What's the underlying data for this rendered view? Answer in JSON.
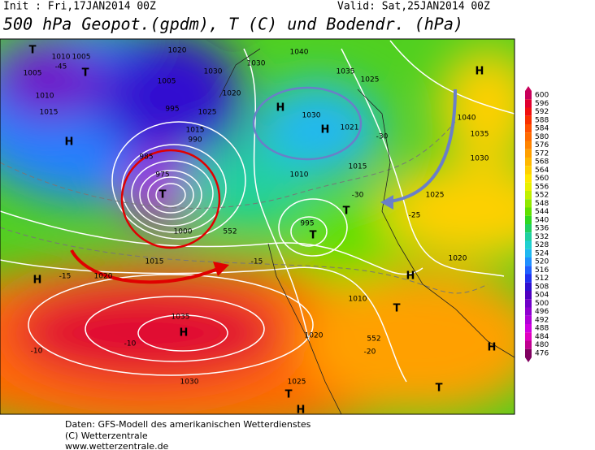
{
  "header": {
    "init": "Init : Fri,17JAN2014 00Z",
    "valid": "Valid: Sat,25JAN2014 00Z",
    "title": "500 hPa Geopot.(gpdm), T (C) und Bodendr. (hPa)"
  },
  "colorbar": {
    "values": [
      600,
      596,
      592,
      588,
      584,
      580,
      576,
      572,
      568,
      564,
      560,
      556,
      552,
      548,
      544,
      540,
      536,
      532,
      528,
      524,
      520,
      516,
      512,
      508,
      504,
      500,
      496,
      492,
      488,
      484,
      480,
      476
    ],
    "colors": [
      "#c8005a",
      "#e00030",
      "#f01010",
      "#f83000",
      "#ff5000",
      "#ff6a00",
      "#ff8400",
      "#ffa000",
      "#ffb800",
      "#ffd000",
      "#ffe800",
      "#e8f000",
      "#c0f000",
      "#90e800",
      "#60e000",
      "#30d820",
      "#20d060",
      "#20d0a0",
      "#20d0d0",
      "#20b8f0",
      "#2090ff",
      "#2060ff",
      "#2030f0",
      "#3010d0",
      "#5000c0",
      "#7000c8",
      "#9000d0",
      "#b000d8",
      "#d000e0",
      "#e000c0",
      "#c00090",
      "#800060"
    ]
  },
  "map_labels": [
    "T",
    "1010",
    "1005",
    "-45",
    "1005",
    "T",
    "1010",
    "1015",
    "H",
    "1020",
    "1005",
    "1030",
    "995",
    "1025",
    "1015",
    "990",
    "985",
    "975",
    "T",
    "1000",
    "1020",
    "1030",
    "1040",
    "1035",
    "1025",
    "H",
    "H",
    "1030",
    "1021",
    "-30",
    "H",
    "1040",
    "1035",
    "1030",
    "1025",
    "-25",
    "1010",
    "1015",
    "T",
    "995",
    "T",
    "-30",
    "H",
    "1020",
    "1015",
    "-15",
    "1035",
    "H",
    "-10",
    "-10",
    "1030",
    "1025",
    "1020",
    "T",
    "H",
    "T",
    "H",
    "T",
    "H",
    "1020",
    "1010",
    "-20",
    "-15",
    "552",
    "552"
  ],
  "footer": {
    "line1": "Daten: GFS-Modell des amerikanischen Wetterdienstes",
    "line2": "(C) Wetterzentrale",
    "line3": "www.wetterzentrale.de"
  }
}
